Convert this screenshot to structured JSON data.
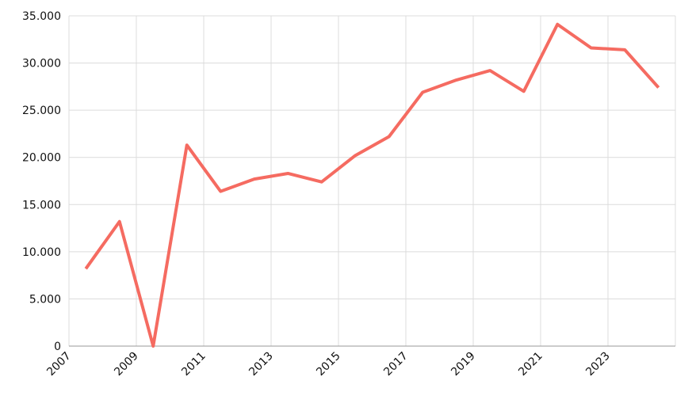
{
  "chart_data": {
    "type": "line",
    "x": [
      2007.5,
      2008.5,
      2009.5,
      2010.5,
      2011.5,
      2012.5,
      2013.5,
      2014.5,
      2015.5,
      2016.5,
      2017.5,
      2018.5,
      2019.5,
      2020.5,
      2021.5,
      2022.5,
      2023.5,
      2024.5
    ],
    "series": [
      {
        "color": "#f56b61",
        "values": [
          8200,
          13200,
          0,
          21300,
          16400,
          17700,
          18300,
          17400,
          20200,
          22200,
          26900,
          28200,
          29200,
          27000,
          34100,
          31600,
          31400,
          27400
        ]
      }
    ],
    "xlim": [
      2007,
      2025
    ],
    "xticks": [
      2007,
      2009,
      2011,
      2013,
      2015,
      2017,
      2019,
      2021,
      2023
    ],
    "ylim": [
      0,
      35000
    ],
    "yticks": [
      0,
      {
        "value": 5000,
        "label": "5.000"
      },
      {
        "value": 10000,
        "label": "10.000"
      },
      {
        "value": 15000,
        "label": "15.000"
      },
      {
        "value": 20000,
        "label": "20.000"
      },
      {
        "value": 25000,
        "label": "25.000"
      },
      {
        "value": 30000,
        "label": "30.000"
      },
      {
        "value": 35000,
        "label": "35.000"
      }
    ],
    "grid": true
  }
}
